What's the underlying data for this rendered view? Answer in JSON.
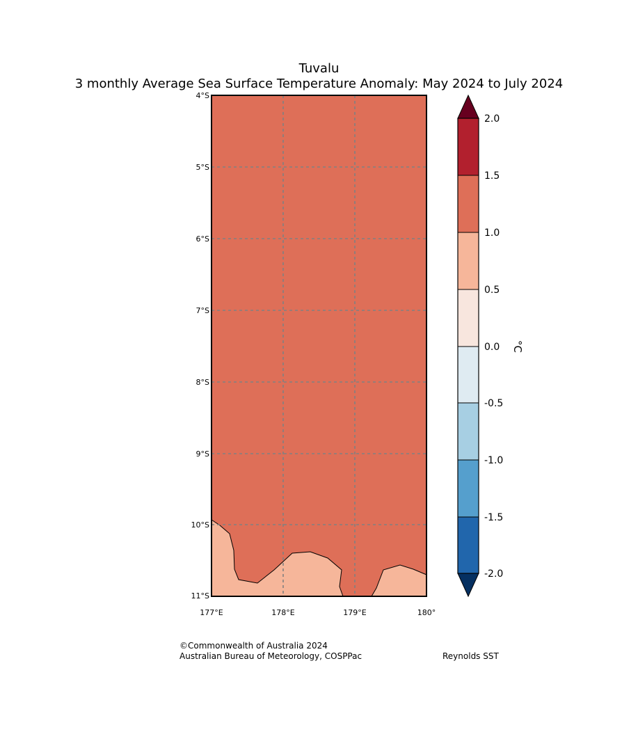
{
  "title": {
    "line1": "Tuvalu",
    "line2": "3 monthly Average Sea Surface Temperature Anomaly: May 2024 to July 2024"
  },
  "map": {
    "lat_labels": [
      "4°S",
      "5°S",
      "6°S",
      "7°S",
      "8°S",
      "9°S",
      "10°S",
      "11°S"
    ],
    "lon_labels": [
      "177°E",
      "178°E",
      "179°E",
      "180°"
    ],
    "ocean_anomaly_band": "1.0 to 1.5",
    "coastal_anomaly_band": "0.5 to 1.0"
  },
  "colorbar": {
    "unit": "°C",
    "ticks": [
      "2.0",
      "1.5",
      "1.0",
      "0.5",
      "0.0",
      "-0.5",
      "-1.0",
      "-1.5",
      "-2.0"
    ],
    "colors": [
      "#b2202e",
      "#de6f58",
      "#f6b69a",
      "#f8e6de",
      "#dfebf2",
      "#a7cfe3",
      "#559fcd",
      "#2166ac"
    ],
    "over_color": "#67001f",
    "under_color": "#053061"
  },
  "footer": {
    "copyright": "©Commonwealth of Australia 2024",
    "agency": "Australian Bureau of Meteorology, COSPPac",
    "source": "Reynolds SST"
  }
}
